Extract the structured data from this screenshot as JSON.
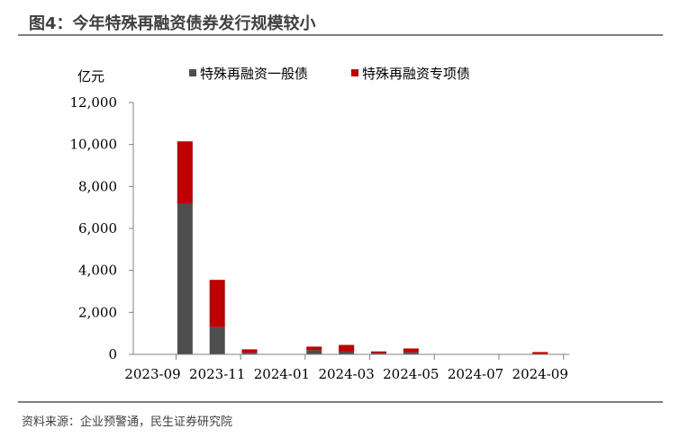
{
  "header": {
    "title": "图4：今年特殊再融资债券发行规模较小"
  },
  "footer": {
    "source": "资料来源：企业预警通，民生证券研究院"
  },
  "colors": {
    "general": "#4d4d4d",
    "special": "#c00000",
    "axis": "#808080"
  },
  "chart_data": {
    "type": "bar",
    "stacked": true,
    "unit": "亿元",
    "categories": [
      "2023-09",
      "2023-10",
      "2023-11",
      "2023-12",
      "2024-01",
      "2024-02",
      "2024-03",
      "2024-04",
      "2024-05",
      "2024-06",
      "2024-07",
      "2024-08",
      "2024-09"
    ],
    "x_tick_labels": [
      "2023-09",
      "2023-11",
      "2024-01",
      "2024-03",
      "2024-05",
      "2024-07",
      "2024-09"
    ],
    "y_ticks": [
      "0",
      "2,000",
      "4,000",
      "6,000",
      "8,000",
      "10,000",
      "12,000"
    ],
    "ylim": [
      0,
      12000
    ],
    "legend_position": "top",
    "series": [
      {
        "name": "特殊再融资一般债",
        "values": [
          0,
          7200,
          1300,
          80,
          0,
          200,
          150,
          60,
          100,
          0,
          0,
          0,
          20
        ]
      },
      {
        "name": "特殊再融资专项债",
        "values": [
          0,
          2950,
          2250,
          160,
          0,
          170,
          300,
          80,
          180,
          0,
          0,
          0,
          90
        ]
      }
    ]
  }
}
